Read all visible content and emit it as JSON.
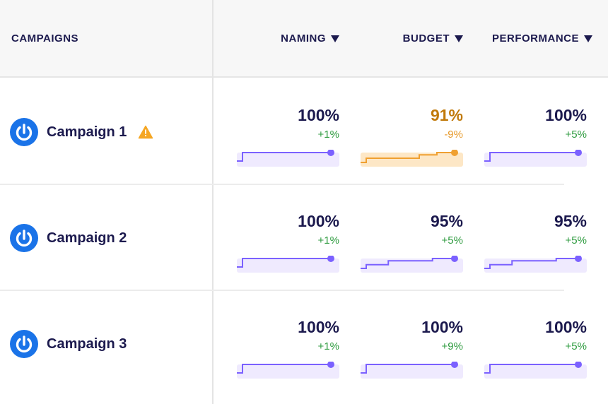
{
  "header": {
    "campaigns_label": "CAMPAIGNS",
    "columns": [
      {
        "label": "NAMING"
      },
      {
        "label": "BUDGET"
      },
      {
        "label": "PERFORMANCE"
      }
    ]
  },
  "colors": {
    "text": "#1c1a4e",
    "logo": "#1a73e8",
    "positive": "#2e9b3f",
    "warning_value": "#c17a0b",
    "warning_change": "#e79a2b",
    "spark_line": "#7b61ff",
    "spark_fill": "#efeafe",
    "spark_line_warning": "#f0a030",
    "spark_fill_warning": "#fde7c6"
  },
  "campaigns": [
    {
      "name": "Campaign 1",
      "warning": true,
      "warning_icon": "alert-triangle-icon",
      "metrics": {
        "naming": {
          "value": "100%",
          "change": "+1%",
          "status": "ok",
          "trend": [
            0.7,
            1,
            1,
            1,
            1
          ]
        },
        "budget": {
          "value": "91%",
          "change": "-9%",
          "status": "warning",
          "trend": [
            0.65,
            0.8,
            0.8,
            0.8,
            0.92,
            1
          ]
        },
        "performance": {
          "value": "100%",
          "change": "+5%",
          "status": "ok",
          "trend": [
            0.7,
            1,
            1,
            1,
            1
          ]
        }
      }
    },
    {
      "name": "Campaign 2",
      "warning": false,
      "metrics": {
        "naming": {
          "value": "100%",
          "change": "+1%",
          "status": "ok",
          "trend": [
            0.7,
            1,
            1,
            1,
            1
          ]
        },
        "budget": {
          "value": "95%",
          "change": "+5%",
          "status": "ok",
          "trend": [
            0.65,
            0.78,
            0.92,
            0.92,
            1
          ]
        },
        "performance": {
          "value": "95%",
          "change": "+5%",
          "status": "ok",
          "trend": [
            0.65,
            0.78,
            0.92,
            0.92,
            1
          ]
        }
      }
    },
    {
      "name": "Campaign 3",
      "warning": false,
      "metrics": {
        "naming": {
          "value": "100%",
          "change": "+1%",
          "status": "ok",
          "trend": [
            0.7,
            1,
            1,
            1,
            1
          ]
        },
        "budget": {
          "value": "100%",
          "change": "+9%",
          "status": "ok",
          "trend": [
            0.7,
            1,
            1,
            1,
            1
          ]
        },
        "performance": {
          "value": "100%",
          "change": "+5%",
          "status": "ok",
          "trend": [
            0.7,
            1,
            1,
            1,
            1
          ]
        }
      }
    }
  ]
}
